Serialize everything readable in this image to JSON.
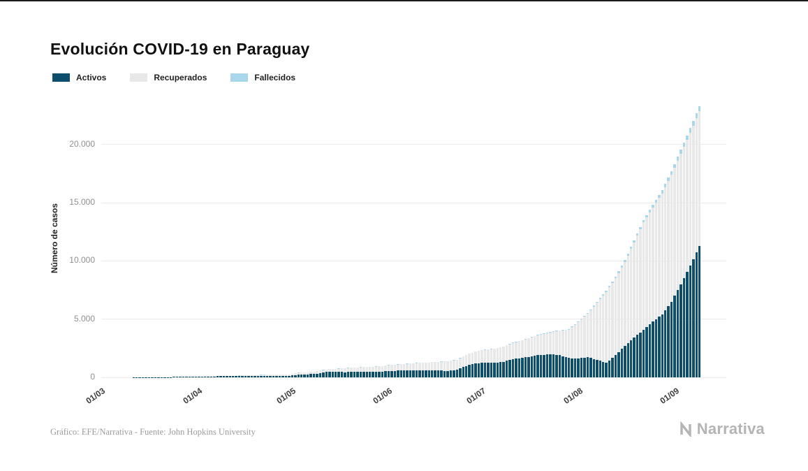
{
  "title": "Evolución COVID-19 en Paraguay",
  "legend": [
    {
      "label": "Activos",
      "color": "#0d4e6d"
    },
    {
      "label": "Recuperados",
      "color": "#e8e8e8"
    },
    {
      "label": "Fallecidos",
      "color": "#a8d6ea"
    }
  ],
  "footer": {
    "credit": "Gráfico: EFE/Narrativa - Fuente: John Hopkins University",
    "brand": "Narrativa"
  },
  "chart_data": {
    "type": "bar",
    "stacked": true,
    "title": "Evolución COVID-19 en Paraguay",
    "xlabel": "",
    "ylabel": "Número de casos",
    "ylim": [
      0,
      23700
    ],
    "grid": "horizontal",
    "legend_position": "top-left",
    "yticks": [
      {
        "value": 0,
        "label": "0"
      },
      {
        "value": 5000,
        "label": "5.000"
      },
      {
        "value": 10000,
        "label": "10.000"
      },
      {
        "value": 15000,
        "label": "15.000"
      },
      {
        "value": 20000,
        "label": "20.000"
      }
    ],
    "xticks": [
      {
        "label": "01/03",
        "day": 0
      },
      {
        "label": "01/04",
        "day": 31
      },
      {
        "label": "01/05",
        "day": 61
      },
      {
        "label": "01/06",
        "day": 92
      },
      {
        "label": "01/07",
        "day": 122
      },
      {
        "label": "01/08",
        "day": 153
      },
      {
        "label": "01/09",
        "day": 184
      }
    ],
    "x_span_days": 192,
    "x": [
      "01/03",
      "04/03",
      "07/03",
      "10/03",
      "13/03",
      "16/03",
      "19/03",
      "22/03",
      "25/03",
      "28/03",
      "31/03",
      "03/04",
      "06/04",
      "09/04",
      "12/04",
      "15/04",
      "18/04",
      "21/04",
      "24/04",
      "27/04",
      "30/04",
      "03/05",
      "06/05",
      "09/05",
      "12/05",
      "15/05",
      "18/05",
      "21/05",
      "24/05",
      "27/05",
      "30/05",
      "02/06",
      "05/06",
      "08/06",
      "11/06",
      "14/06",
      "17/06",
      "20/06",
      "23/06",
      "26/06",
      "29/06",
      "02/07",
      "05/07",
      "08/07",
      "11/07",
      "14/07",
      "17/07",
      "20/07",
      "23/07",
      "26/07",
      "29/07",
      "01/08",
      "04/08",
      "07/08",
      "10/08",
      "13/08",
      "16/08",
      "19/08",
      "22/08",
      "25/08",
      "28/08",
      "31/08",
      "03/09",
      "06/09",
      "09/09"
    ],
    "series": [
      {
        "name": "Activos",
        "color": "#0d4e6d",
        "values": [
          1,
          1,
          1,
          4,
          8,
          8,
          10,
          20,
          37,
          52,
          61,
          81,
          90,
          97,
          97,
          113,
          143,
          143,
          138,
          133,
          136,
          245,
          266,
          330,
          455,
          458,
          450,
          483,
          462,
          460,
          503,
          566,
          576,
          601,
          607,
          585,
          574,
          568,
          641,
          990,
          1188,
          1260,
          1238,
          1343,
          1558,
          1664,
          1805,
          1939,
          1973,
          1915,
          1660,
          1620,
          1750,
          1500,
          1250,
          1900,
          2700,
          3400,
          4100,
          4800,
          5400,
          6500,
          8000,
          9600,
          11300
        ]
      },
      {
        "name": "Recuperados",
        "color": "#e8e8e8",
        "values": [
          0,
          0,
          0,
          0,
          0,
          0,
          0,
          1,
          1,
          1,
          1,
          12,
          18,
          22,
          31,
          41,
          51,
          62,
          81,
          97,
          120,
          141,
          164,
          191,
          224,
          271,
          325,
          371,
          411,
          446,
          472,
          510,
          548,
          590,
          635,
          692,
          749,
          811,
          872,
          935,
          1016,
          1106,
          1198,
          1296,
          1397,
          1507,
          1624,
          1751,
          1892,
          2089,
          2435,
          3127,
          3700,
          4900,
          6100,
          6600,
          7200,
          8200,
          9200,
          9800,
          10400,
          10900,
          11200,
          11400,
          11554
        ]
      },
      {
        "name": "Fallecidos",
        "color": "#a8d6ea",
        "values": [
          0,
          0,
          0,
          1,
          1,
          1,
          1,
          1,
          3,
          3,
          3,
          3,
          5,
          5,
          6,
          7,
          8,
          8,
          9,
          9,
          10,
          10,
          10,
          10,
          10,
          11,
          11,
          11,
          11,
          11,
          11,
          11,
          11,
          11,
          12,
          12,
          13,
          13,
          15,
          17,
          17,
          19,
          20,
          21,
          25,
          27,
          28,
          31,
          35,
          40,
          49,
          61,
          72,
          90,
          113,
          131,
          152,
          178,
          205,
          237,
          270,
          304,
          345,
          395,
          446
        ]
      }
    ]
  }
}
